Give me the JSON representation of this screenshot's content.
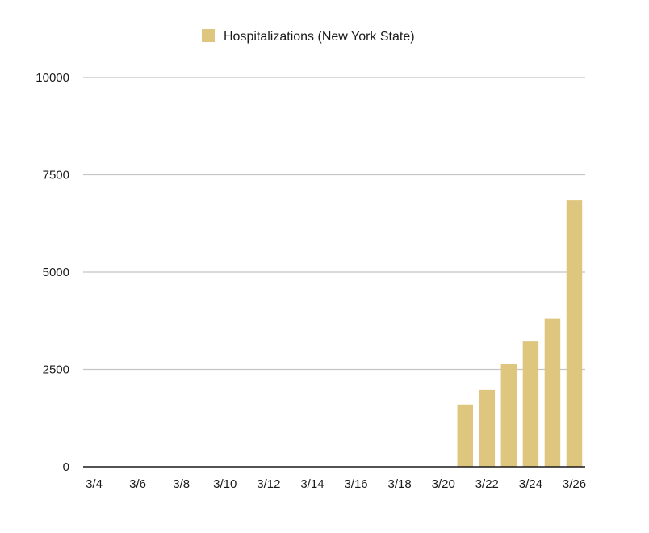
{
  "chart_data": {
    "type": "bar",
    "title": "",
    "xlabel": "",
    "ylabel": "",
    "categories": [
      "3/4",
      "3/5",
      "3/6",
      "3/7",
      "3/8",
      "3/9",
      "3/10",
      "3/11",
      "3/12",
      "3/13",
      "3/14",
      "3/15",
      "3/16",
      "3/17",
      "3/18",
      "3/19",
      "3/20",
      "3/21",
      "3/22",
      "3/23",
      "3/24",
      "3/25",
      "3/26"
    ],
    "x_tick_labels": [
      "3/4",
      "3/6",
      "3/8",
      "3/10",
      "3/12",
      "3/14",
      "3/16",
      "3/18",
      "3/20",
      "3/22",
      "3/24",
      "3/26"
    ],
    "series": [
      {
        "name": "Hospitalizations (New York State)",
        "color": "#dfc67f",
        "values": [
          0,
          0,
          0,
          0,
          0,
          0,
          0,
          0,
          0,
          0,
          0,
          0,
          0,
          0,
          0,
          0,
          0,
          1603,
          1974,
          2635,
          3234,
          3805,
          6844
        ]
      }
    ],
    "ylim": [
      0,
      10000
    ],
    "y_ticks": [
      0,
      2500,
      5000,
      7500,
      10000
    ],
    "grid": true,
    "legend_position": "top"
  }
}
